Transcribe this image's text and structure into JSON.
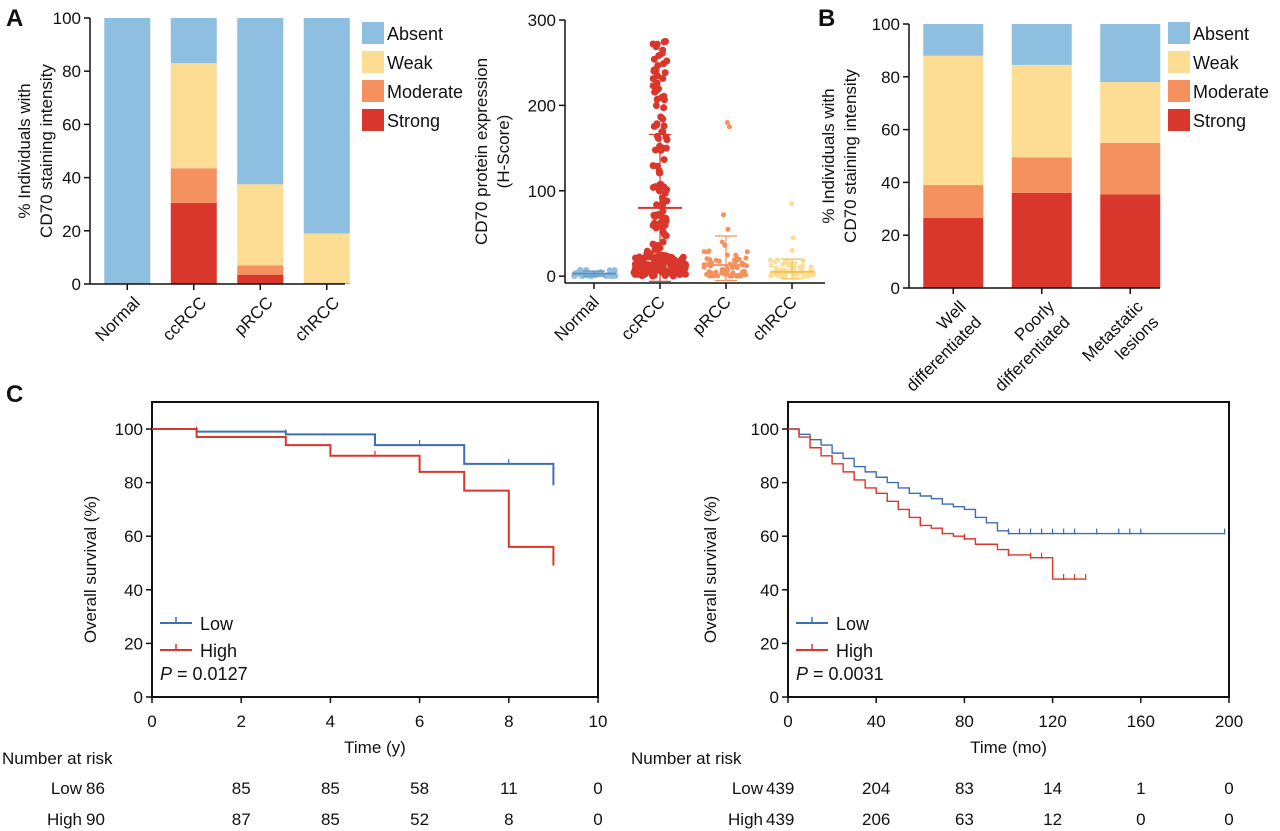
{
  "panel_labels": {
    "a": "A",
    "b": "B",
    "c": "C"
  },
  "colors": {
    "absent": "#8fbfe0",
    "weak": "#fddc94",
    "moderate": "#f4915e",
    "strong": "#d9372b",
    "low": "#3f6fb3",
    "high": "#d9372b",
    "normal_scatter": "#8fbfe0",
    "ccrcc_scatter": "#d9372b",
    "prcc_scatter": "#f4915e",
    "chrcc_scatter": "#fddc94"
  },
  "legend_labels": [
    "Absent",
    "Weak",
    "Moderate",
    "Strong"
  ],
  "chart_data": [
    {
      "id": "a-bar",
      "type": "bar",
      "stacked": true,
      "categories": [
        "Normal",
        "ccRCC",
        "pRCC",
        "chRCC"
      ],
      "ylabel_line1": "% Individuals with",
      "ylabel_line2": "CD70 staining intensity",
      "ylim": [
        0,
        100
      ],
      "yticks": [
        0,
        20,
        40,
        60,
        80,
        100
      ],
      "series": [
        {
          "name": "Strong",
          "values": [
            0,
            30.5,
            3.5,
            0
          ]
        },
        {
          "name": "Moderate",
          "values": [
            0,
            13,
            3.5,
            0.5
          ]
        },
        {
          "name": "Weak",
          "values": [
            0,
            39.5,
            30.5,
            18.5
          ]
        },
        {
          "name": "Absent",
          "values": [
            100,
            17,
            62.5,
            81
          ]
        }
      ],
      "legend_position": "right"
    },
    {
      "id": "a-scatter",
      "type": "scatter",
      "categories": [
        "Normal",
        "ccRCC",
        "pRCC",
        "chRCC"
      ],
      "ylabel_line1": "CD70 protein expression",
      "ylabel_line2": "(H-Score)",
      "ylim": [
        -8,
        300
      ],
      "yticks": [
        0,
        100,
        200,
        300
      ],
      "means": [
        3,
        80,
        13,
        5
      ],
      "sd_upper": [
        6,
        166,
        47,
        20
      ],
      "sd_lower": [
        0,
        -6,
        -5,
        -3
      ],
      "groups": [
        {
          "name": "Normal",
          "n": 40,
          "min": 0,
          "max": 8,
          "outliers": []
        },
        {
          "name": "ccRCC",
          "n": 220,
          "min": 0,
          "max": 280,
          "outliers": []
        },
        {
          "name": "pRCC",
          "n": 70,
          "min": 0,
          "max": 30,
          "outliers": [
            180,
            175,
            72,
            55,
            40,
            36
          ]
        },
        {
          "name": "chRCC",
          "n": 55,
          "min": 0,
          "max": 20,
          "outliers": [
            85,
            45,
            30
          ]
        }
      ]
    },
    {
      "id": "b-bar",
      "type": "bar",
      "stacked": true,
      "categories": [
        [
          "Well",
          "differentiated"
        ],
        [
          "Poorly",
          "differentiated"
        ],
        [
          "Metastatic",
          "lesions"
        ]
      ],
      "ylabel_line1": "% Individuals with",
      "ylabel_line2": "CD70 staining intensity",
      "ylim": [
        0,
        100
      ],
      "yticks": [
        0,
        20,
        40,
        60,
        80,
        100
      ],
      "series": [
        {
          "name": "Strong",
          "values": [
            26.5,
            36,
            35.5
          ]
        },
        {
          "name": "Moderate",
          "values": [
            12.5,
            13.5,
            19.5
          ]
        },
        {
          "name": "Weak",
          "values": [
            49,
            35,
            23
          ]
        },
        {
          "name": "Absent",
          "values": [
            12,
            15.5,
            22
          ]
        }
      ],
      "legend_position": "right"
    },
    {
      "id": "c-km-left",
      "type": "line",
      "step": true,
      "xlabel": "Time (y)",
      "ylabel": "Overall survival (%)",
      "xlim": [
        0,
        10
      ],
      "ylim": [
        0,
        100
      ],
      "xticks": [
        0,
        2,
        4,
        6,
        8,
        10
      ],
      "yticks": [
        0,
        20,
        40,
        60,
        80,
        100
      ],
      "p_label": "P",
      "p_value": " = 0.0127",
      "series": [
        {
          "name": "Low",
          "x": [
            0,
            1,
            3,
            5,
            7,
            9
          ],
          "y": [
            100,
            99,
            98,
            94,
            87,
            79
          ],
          "censor_x": [
            1,
            3,
            6,
            8
          ]
        },
        {
          "name": "High",
          "x": [
            0,
            1,
            3,
            4,
            6,
            7,
            8,
            9
          ],
          "y": [
            100,
            97,
            94,
            90,
            84,
            77,
            56,
            49
          ],
          "censor_x": [
            5
          ]
        }
      ],
      "risk_table": {
        "title": "Number at risk",
        "times": [
          0,
          2,
          4,
          6,
          8,
          10
        ],
        "rows": [
          {
            "label": "Low",
            "values": [
              "86",
              "85",
              "85",
              "58",
              "11",
              "0"
            ]
          },
          {
            "label": "High",
            "values": [
              "90",
              "87",
              "85",
              "52",
              "8",
              "0"
            ]
          }
        ]
      }
    },
    {
      "id": "c-km-right",
      "type": "line",
      "step": true,
      "xlabel": "Time (mo)",
      "ylabel": "Overall survival (%)",
      "xlim": [
        0,
        200
      ],
      "ylim": [
        0,
        100
      ],
      "xticks": [
        0,
        40,
        80,
        120,
        160,
        200
      ],
      "yticks": [
        0,
        20,
        40,
        60,
        80,
        100
      ],
      "p_label": "P",
      "p_value": " = 0.0031",
      "series": [
        {
          "name": "Low",
          "x": [
            0,
            5,
            10,
            15,
            20,
            25,
            30,
            35,
            40,
            45,
            50,
            55,
            60,
            65,
            70,
            75,
            80,
            85,
            90,
            95,
            100,
            120,
            150,
            198
          ],
          "y": [
            100,
            98,
            96,
            94,
            91,
            89,
            86,
            84,
            82,
            80,
            78,
            76,
            75,
            74,
            72,
            71,
            70,
            67,
            65,
            62,
            61,
            61,
            61,
            61
          ],
          "censor_x": [
            100,
            105,
            110,
            115,
            120,
            125,
            130,
            140,
            150,
            155,
            160,
            198
          ]
        },
        {
          "name": "High",
          "x": [
            0,
            5,
            10,
            15,
            20,
            25,
            30,
            35,
            40,
            45,
            50,
            55,
            60,
            65,
            70,
            75,
            80,
            85,
            95,
            100,
            110,
            118,
            120,
            135
          ],
          "y": [
            100,
            97,
            93,
            90,
            87,
            84,
            81,
            78,
            76,
            73,
            70,
            67,
            64,
            63,
            61,
            60,
            59,
            57,
            55,
            53,
            52,
            52,
            44,
            44
          ],
          "censor_x": [
            60,
            70,
            80,
            100,
            110,
            115,
            125,
            130,
            135
          ]
        }
      ],
      "risk_table": {
        "title": "Number at risk",
        "times": [
          0,
          40,
          80,
          120,
          160,
          200
        ],
        "rows": [
          {
            "label": "Low",
            "values": [
              "439",
              "204",
              "83",
              "14",
              "1",
              "0"
            ]
          },
          {
            "label": "High",
            "values": [
              "439",
              "206",
              "63",
              "12",
              "0",
              "0"
            ]
          }
        ]
      }
    }
  ]
}
